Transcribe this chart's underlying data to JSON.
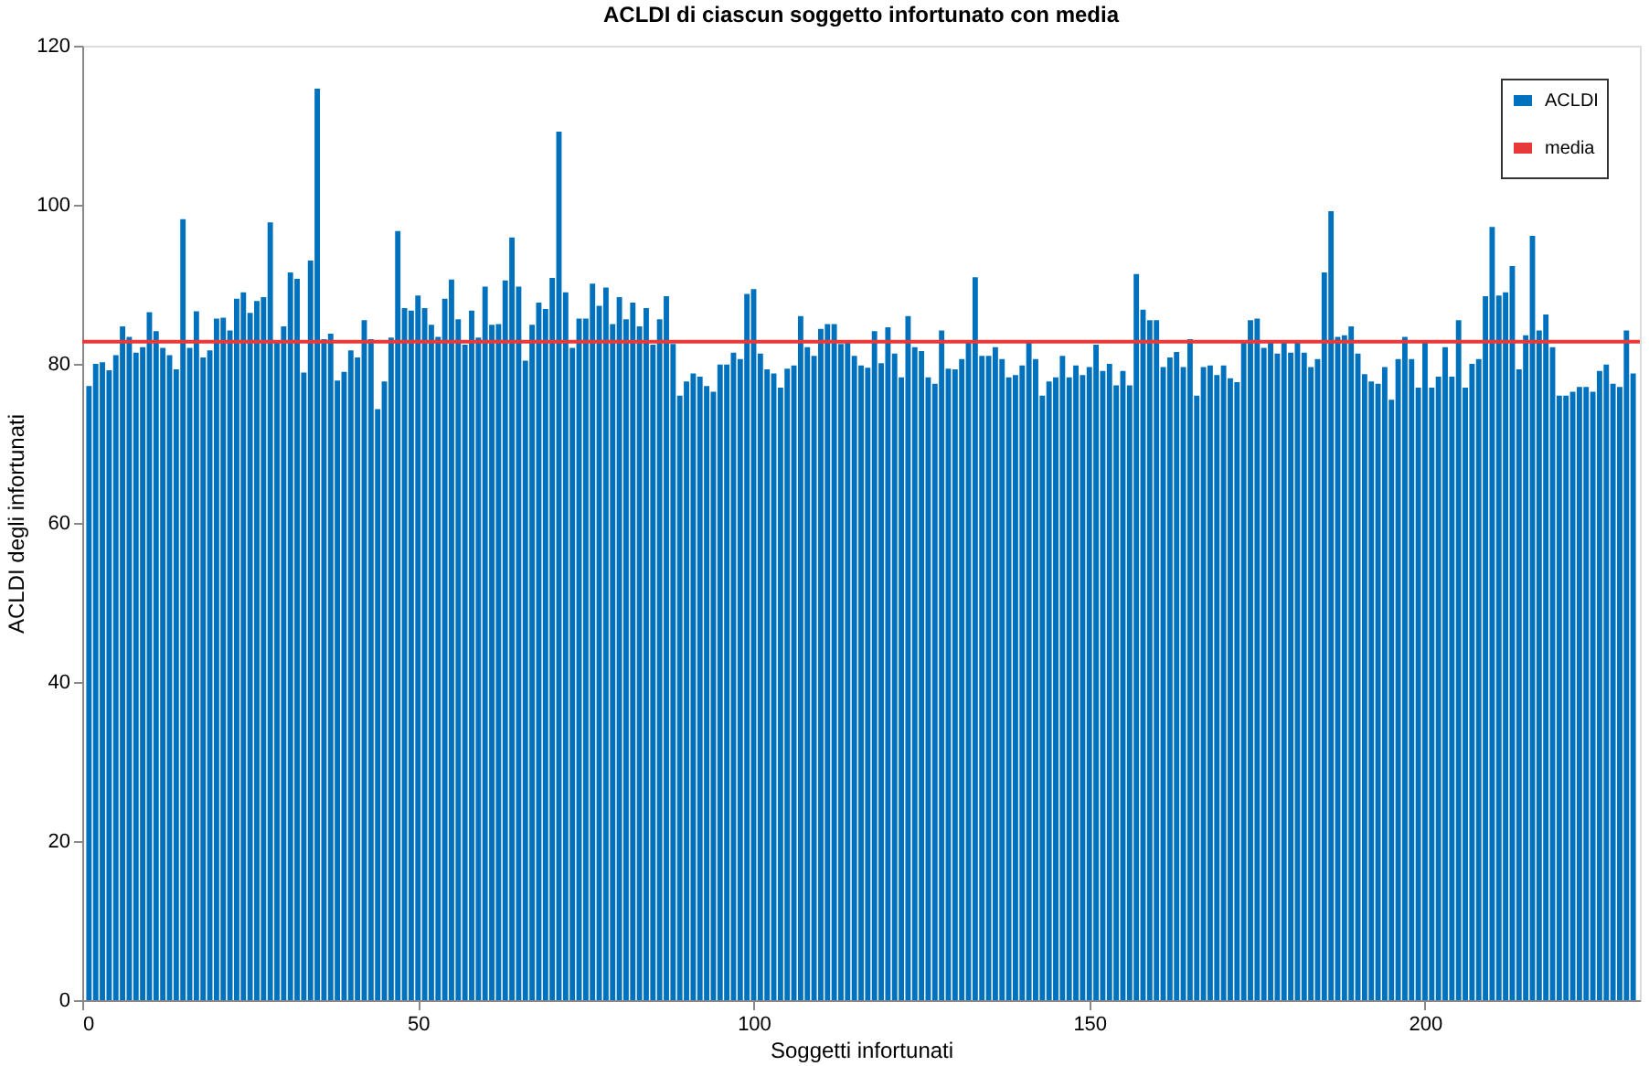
{
  "chart_data": {
    "type": "bar",
    "title": "ACLDI di ciascun soggetto infortunato con media",
    "xlabel": "Soggetti infortunati",
    "ylabel": "ACLDI degli infortunati",
    "x": [
      1,
      2,
      3,
      4,
      5,
      6,
      7,
      8,
      9,
      10,
      11,
      12,
      13,
      14,
      15,
      16,
      17,
      18,
      19,
      20,
      21,
      22,
      23,
      24,
      25,
      26,
      27,
      28,
      29,
      30,
      31,
      32,
      33,
      34,
      35,
      36,
      37,
      38,
      39,
      40,
      41,
      42,
      43,
      44,
      45,
      46,
      47,
      48,
      49,
      50,
      51,
      52,
      53,
      54,
      55,
      56,
      57,
      58,
      59,
      60,
      61,
      62,
      63,
      64,
      65,
      66,
      67,
      68,
      69,
      70,
      71,
      72,
      73,
      74,
      75,
      76,
      77,
      78,
      79,
      80,
      81,
      82,
      83,
      84,
      85,
      86,
      87,
      88,
      89,
      90,
      91,
      92,
      93,
      94,
      95,
      96,
      97,
      98,
      99,
      100,
      101,
      102,
      103,
      104,
      105,
      106,
      107,
      108,
      109,
      110,
      111,
      112,
      113,
      114,
      115,
      116,
      117,
      118,
      119,
      120,
      121,
      122,
      123,
      124,
      125,
      126,
      127,
      128,
      129,
      130,
      131,
      132,
      133,
      134,
      135,
      136,
      137,
      138,
      139,
      140,
      141,
      142,
      143,
      144,
      145,
      146,
      147,
      148,
      149,
      150,
      151,
      152,
      153,
      154,
      155,
      156,
      157,
      158,
      159,
      160,
      161,
      162,
      163,
      164,
      165,
      166,
      167,
      168,
      169,
      170,
      171,
      172,
      173,
      174,
      175,
      176,
      177,
      178,
      179,
      180,
      181,
      182,
      183,
      184,
      185,
      186,
      187,
      188,
      189,
      190,
      191,
      192,
      193,
      194,
      195,
      196,
      197,
      198,
      199,
      200,
      201,
      202,
      203,
      204,
      205,
      206,
      207,
      208,
      209,
      210,
      211,
      212,
      213,
      214,
      215,
      216,
      217,
      218,
      219,
      220,
      221,
      222,
      223,
      224,
      225,
      226,
      227,
      228,
      229,
      230,
      231
    ],
    "series": [
      {
        "name": "ACLDI",
        "color": "#0072bd",
        "values": [
          77.2,
          80,
          80.2,
          79.2,
          81.1,
          84.7,
          83.4,
          81.4,
          82.1,
          86.5,
          84.1,
          82,
          81.1,
          79.3,
          98.2,
          82,
          86.6,
          80.8,
          81.7,
          85.7,
          85.8,
          84.2,
          88.2,
          89,
          86.4,
          87.9,
          88.4,
          97.8,
          82.9,
          84.7,
          91.5,
          90.7,
          78.9,
          93,
          114.6,
          83.1,
          83.8,
          77.9,
          79,
          81.7,
          80.8,
          85.5,
          83.1,
          74.3,
          77.8,
          83.3,
          96.7,
          87,
          86.7,
          88.6,
          87,
          84.9,
          83.4,
          88.2,
          90.6,
          85.6,
          82.4,
          86.7,
          83.3,
          89.7,
          84.9,
          85,
          90.5,
          95.9,
          89.7,
          80.4,
          84.9,
          87.7,
          86.9,
          90.8,
          109.2,
          89,
          82,
          85.7,
          85.7,
          90.1,
          87.3,
          89.6,
          85,
          88.4,
          85.6,
          87.7,
          84.7,
          87,
          82.4,
          85.6,
          88.5,
          82.5,
          76,
          77.8,
          78.8,
          78.4,
          77.2,
          76.5,
          79.9,
          79.9,
          81.4,
          80.6,
          88.8,
          89.4,
          81.3,
          79.3,
          78.8,
          77,
          79.4,
          79.8,
          86,
          82.1,
          81,
          84.4,
          85,
          85,
          82.5,
          83,
          81,
          79.8,
          79.5,
          84.1,
          80.1,
          84.6,
          81.3,
          78.3,
          86,
          82.1,
          81.6,
          78.3,
          77.5,
          84.2,
          79.4,
          79.3,
          80.6,
          82.9,
          90.9,
          81,
          81,
          82.1,
          80.6,
          78.3,
          78.6,
          79.8,
          82.7,
          80.6,
          76,
          77.8,
          78.3,
          81,
          78.3,
          79.8,
          78.6,
          79.6,
          82.4,
          79.1,
          80,
          77.3,
          79.1,
          77.3,
          91.3,
          86.8,
          85.5,
          85.5,
          79.6,
          80.8,
          81.5,
          79.6,
          83.1,
          76,
          79.6,
          79.8,
          78.6,
          79.8,
          78.2,
          77.7,
          82.7,
          85.5,
          85.7,
          82,
          83,
          81.3,
          83,
          81.4,
          83,
          81.4,
          79.6,
          80.6,
          91.5,
          99.2,
          83.4,
          83.6,
          84.7,
          81.3,
          78.7,
          77.8,
          77.5,
          79.6,
          75.5,
          80.6,
          83.4,
          80.6,
          77,
          83,
          77,
          78.4,
          82.1,
          78.4,
          85.5,
          77,
          80,
          80.6,
          88.5,
          97.2,
          88.6,
          89,
          92.3,
          79.3,
          83.6,
          96.1,
          84.2,
          86.2,
          82.1,
          76,
          76,
          76.5,
          77.1,
          77.1,
          76.5,
          79.1,
          79.9,
          77.5,
          77.1,
          84.2,
          78.8
        ]
      }
    ],
    "ref_lines": [
      {
        "axis": "y",
        "value": 82.8,
        "label": "media",
        "color": "#e8393a",
        "line_style": "solid"
      }
    ],
    "xlim": [
      0,
      232
    ],
    "xticks": [
      0,
      50,
      100,
      150,
      200
    ],
    "ylim": [
      0,
      120
    ],
    "yticks": [
      0,
      20,
      40,
      60,
      80,
      100,
      120
    ],
    "grid": false,
    "legend": "top right"
  }
}
